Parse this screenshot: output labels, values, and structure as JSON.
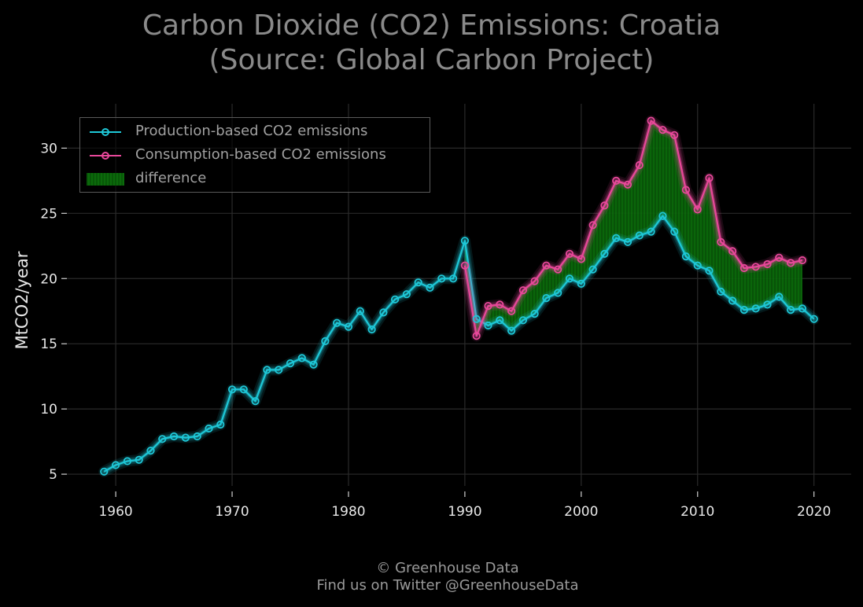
{
  "chart_data": {
    "type": "line",
    "title": "Carbon Dioxide (CO2) Emissions: Croatia",
    "subtitle": "(Source: Global Carbon Project)",
    "xlabel": "",
    "ylabel": "MtCO2/year",
    "xlim": [
      1955.8,
      2023.2
    ],
    "ylim": [
      4.1,
      33.4
    ],
    "xticks": [
      1960,
      1970,
      1980,
      1990,
      2000,
      2010,
      2020
    ],
    "yticks": [
      5,
      10,
      15,
      20,
      25,
      30
    ],
    "grid": true,
    "legend_position": "top-left",
    "series": [
      {
        "name": "Production-based CO2 emissions",
        "color": "#1ec8d8",
        "x": [
          1959,
          1960,
          1961,
          1962,
          1963,
          1964,
          1965,
          1966,
          1967,
          1968,
          1969,
          1970,
          1971,
          1972,
          1973,
          1974,
          1975,
          1976,
          1977,
          1978,
          1979,
          1980,
          1981,
          1982,
          1983,
          1984,
          1985,
          1986,
          1987,
          1988,
          1989,
          1990,
          1991,
          1992,
          1993,
          1994,
          1995,
          1996,
          1997,
          1998,
          1999,
          2000,
          2001,
          2002,
          2003,
          2004,
          2005,
          2006,
          2007,
          2008,
          2009,
          2010,
          2011,
          2012,
          2013,
          2014,
          2015,
          2016,
          2017,
          2018,
          2019,
          2020
        ],
        "y": [
          5.2,
          5.7,
          6.0,
          6.1,
          6.8,
          7.7,
          7.9,
          7.8,
          7.9,
          8.5,
          8.8,
          11.5,
          11.5,
          10.6,
          13.0,
          13.0,
          13.5,
          13.9,
          13.4,
          15.2,
          16.6,
          16.3,
          17.5,
          16.1,
          17.4,
          18.4,
          18.8,
          19.7,
          19.3,
          20.0,
          20.0,
          22.9,
          16.9,
          16.4,
          16.8,
          16.0,
          16.8,
          17.3,
          18.5,
          18.9,
          20.0,
          19.6,
          20.7,
          21.9,
          23.1,
          22.8,
          23.3,
          23.6,
          24.8,
          23.6,
          21.7,
          21.0,
          20.6,
          19.0,
          18.3,
          17.6,
          17.7,
          18.0,
          18.6,
          17.6,
          17.7,
          16.9
        ]
      },
      {
        "name": "Consumption-based CO2 emissions",
        "color": "#e8489a",
        "x": [
          1990,
          1991,
          1992,
          1993,
          1994,
          1995,
          1996,
          1997,
          1998,
          1999,
          2000,
          2001,
          2002,
          2003,
          2004,
          2005,
          2006,
          2007,
          2008,
          2009,
          2010,
          2011,
          2012,
          2013,
          2014,
          2015,
          2016,
          2017,
          2018,
          2019
        ],
        "y": [
          21.0,
          15.6,
          17.9,
          18.0,
          17.5,
          19.1,
          19.8,
          21.0,
          20.7,
          21.9,
          21.5,
          24.1,
          25.6,
          27.5,
          27.2,
          28.7,
          32.1,
          31.4,
          31.0,
          26.8,
          25.3,
          27.7,
          22.8,
          22.1,
          20.8,
          20.9,
          21.1,
          21.6,
          21.2,
          21.4
        ]
      }
    ],
    "fill": {
      "name": "difference",
      "color": "#0f7a0f"
    }
  },
  "footer": {
    "line1": "© Greenhouse Data",
    "line2": "Find us on Twitter @GreenhouseData"
  }
}
